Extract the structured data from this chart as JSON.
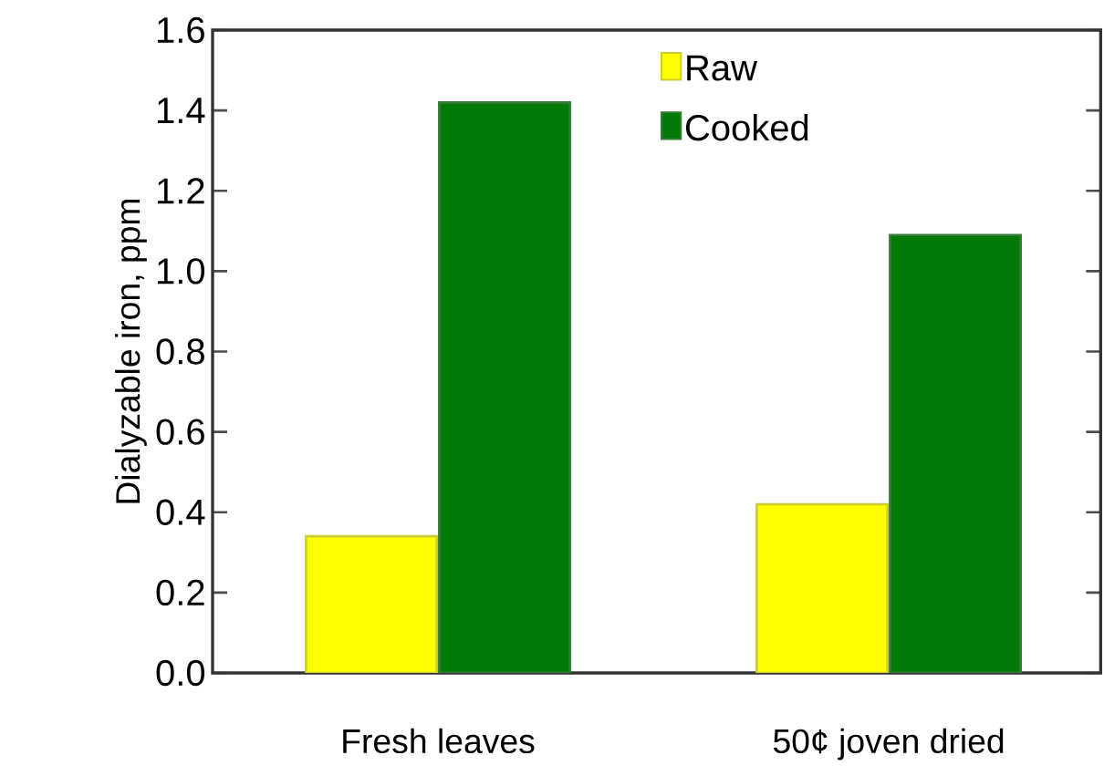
{
  "chart_data": {
    "type": "bar",
    "ylabel": "Dialyzable iron, ppm",
    "categories": [
      "Fresh leaves",
      "50¢ joven dried"
    ],
    "series": [
      {
        "name": "Raw",
        "color": "#ffff00",
        "values": [
          0.34,
          0.42
        ]
      },
      {
        "name": "Cooked",
        "color": "#037a07",
        "values": [
          1.42,
          1.09
        ]
      }
    ],
    "ylim": [
      0,
      1.6
    ],
    "yticks": [
      {
        "value": 0,
        "label": "0.0"
      },
      {
        "value": 0.2,
        "label": "0.2"
      },
      {
        "value": 0.4,
        "label": "0.4"
      },
      {
        "value": 0.6,
        "label": "0.6"
      },
      {
        "value": 0.8,
        "label": "0.8"
      },
      {
        "value": 1.0,
        "label": "1.0"
      },
      {
        "value": 1.2,
        "label": "1.2"
      },
      {
        "value": 1.4,
        "label": "1.4"
      },
      {
        "value": 1.6,
        "label": "1.6"
      }
    ],
    "legend": "top right"
  }
}
